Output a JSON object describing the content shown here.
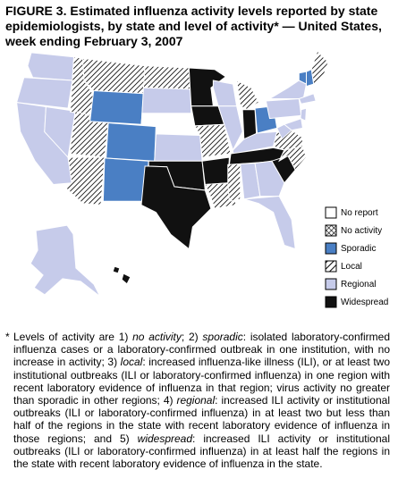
{
  "header": {
    "label": "FIGURE 3.",
    "title": "Estimated influenza activity levels reported by state epidemiologists, by state and level of activity* — United States, week ending February 3, 2007"
  },
  "legend": {
    "items": [
      {
        "label": "No report",
        "style": "solid",
        "color": "#ffffff"
      },
      {
        "label": "No activity",
        "style": "crosshatch",
        "color": "#000000"
      },
      {
        "label": "Sporadic",
        "style": "solid",
        "color": "#4a7fc4"
      },
      {
        "label": "Local",
        "style": "hatch",
        "color": "#000000"
      },
      {
        "label": "Regional",
        "style": "solid",
        "color": "#c6cbea"
      },
      {
        "label": "Widespread",
        "style": "solid",
        "color": "#111111"
      }
    ]
  },
  "footnote": {
    "marker": "*",
    "runs": [
      "Levels of activity are 1) ",
      "no activity",
      "; 2) ",
      "sporadic",
      ": isolated laboratory-confirmed influenza cases or a laboratory-confirmed outbreak in one institution, with no increase in activity; 3) ",
      "local",
      ": increased influenza-like illness (ILI), or at least two institutional outbreaks (ILI or laboratory-confirmed influenza) in one region with recent laboratory evidence of influenza in that region; virus activity no greater than sporadic in other regions; 4) ",
      "regional",
      ": increased ILI activity or institutional outbreaks (ILI or laboratory-confirmed influenza) in at least two but less than half of the regions in the state with recent laboratory evidence of influenza in those regions; and 5) ",
      "widespread",
      ": increased ILI activity or institutional outbreaks (ILI or laboratory-confirmed influenza) in at least half the regions in the state with recent laboratory evidence of influenza in the state."
    ]
  }
}
